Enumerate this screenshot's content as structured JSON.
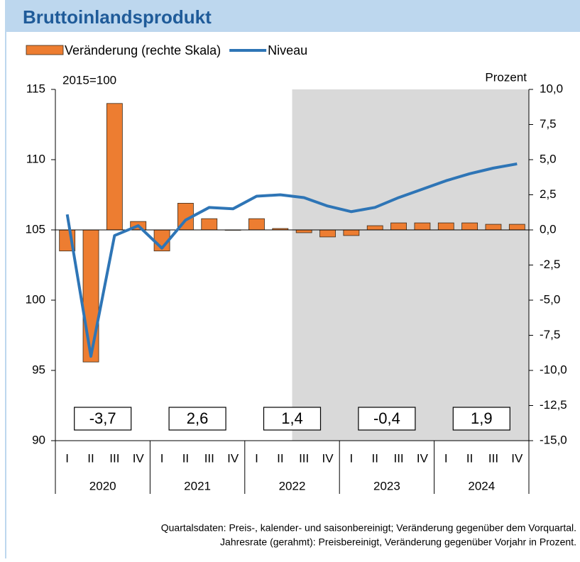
{
  "chart_data": {
    "type": "bar_line",
    "title": "Bruttoinlandsprodukt",
    "y_unit": "2015=100",
    "y2_unit": "Prozent",
    "categories": [
      "I",
      "II",
      "III",
      "IV",
      "I",
      "II",
      "III",
      "IV",
      "I",
      "II",
      "III",
      "IV",
      "I",
      "II",
      "III",
      "IV",
      "I",
      "II",
      "III",
      "IV"
    ],
    "years": [
      "2020",
      "2021",
      "2022",
      "2023",
      "2024"
    ],
    "series": [
      {
        "name": "Veränderung (rechte Skala)",
        "type": "bar",
        "axis": "y2",
        "color": "#ed7d31",
        "values": [
          -1.5,
          -9.4,
          9.0,
          0.6,
          -1.5,
          1.9,
          0.8,
          0.0,
          0.8,
          0.1,
          -0.2,
          -0.5,
          -0.4,
          0.3,
          0.5,
          0.5,
          0.5,
          0.5,
          0.4,
          0.4
        ]
      },
      {
        "name": "Niveau",
        "type": "line",
        "color": "#2e75b6",
        "values": [
          106.1,
          96.0,
          104.6,
          105.3,
          103.7,
          105.7,
          106.6,
          106.5,
          107.4,
          107.5,
          107.3,
          106.7,
          106.3,
          106.6,
          107.3,
          107.9,
          108.5,
          109.0,
          109.4,
          109.7
        ]
      }
    ],
    "annual_rates": {
      "values": [
        -3.7,
        2.6,
        1.4,
        -0.4,
        1.9
      ],
      "value_labels": [
        "-3,7",
        "2,6",
        "1,4",
        "-0,4",
        "1,9"
      ]
    },
    "forecast_start": 10,
    "ylim": [
      90,
      115
    ],
    "yticks": [
      90,
      95,
      100,
      105,
      110,
      115
    ],
    "y2lim": [
      -15,
      10
    ],
    "y2ticks": [
      {
        "value": -15,
        "label": "-15,0"
      },
      {
        "value": -12.5,
        "label": "-12,5"
      },
      {
        "value": -10,
        "label": "-10,0"
      },
      {
        "value": -7.5,
        "label": "-7,5"
      },
      {
        "value": -5,
        "label": "-5,0"
      },
      {
        "value": -2.5,
        "label": "-2,5"
      },
      {
        "value": 0,
        "label": "0,0"
      },
      {
        "value": 2.5,
        "label": "2,5"
      },
      {
        "value": 5,
        "label": "5,0"
      },
      {
        "value": 7.5,
        "label": "7,5"
      },
      {
        "value": 10,
        "label": "10,0"
      }
    ],
    "notes": [
      "Quartalsdaten: Preis-, kalender- und saisonbereinigt; Veränderung gegenüber dem Vorquartal.",
      "Jahresrate (gerahmt): Preisbereinigt, Veränderung gegenüber Vorjahr in Prozent."
    ]
  }
}
